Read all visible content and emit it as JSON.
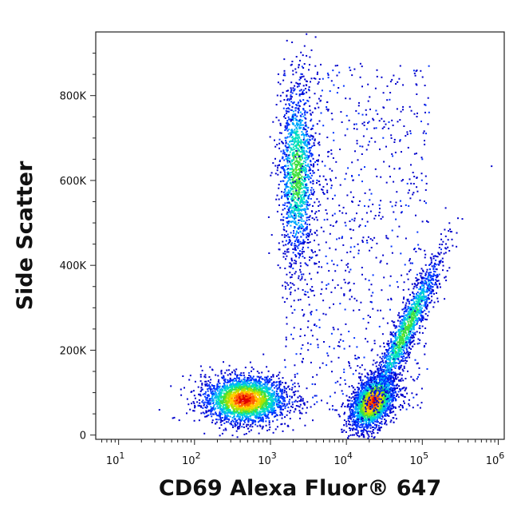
{
  "chart_data": {
    "type": "scatter",
    "subtype": "flow-cytometry density dot plot",
    "xlabel": "CD69 Alexa Fluor® 647",
    "ylabel": "Side Scatter",
    "x_scale": "log",
    "y_scale": "linear",
    "xlim": [
      5,
      1200000
    ],
    "ylim": [
      -10000,
      950000
    ],
    "x_ticks": [
      {
        "value": 10,
        "base": "10",
        "exp": "1"
      },
      {
        "value": 100,
        "base": "10",
        "exp": "2"
      },
      {
        "value": 1000,
        "base": "10",
        "exp": "3"
      },
      {
        "value": 10000,
        "base": "10",
        "exp": "4"
      },
      {
        "value": 100000,
        "base": "10",
        "exp": "5"
      },
      {
        "value": 1000000,
        "base": "10",
        "exp": "6"
      }
    ],
    "y_ticks": [
      {
        "value": 0,
        "label": "0"
      },
      {
        "value": 200000,
        "label": "200K"
      },
      {
        "value": 400000,
        "label": "400K"
      },
      {
        "value": 600000,
        "label": "600K"
      },
      {
        "value": 800000,
        "label": "800K"
      }
    ],
    "grid": false,
    "legend": "none",
    "density_colors": [
      "#0000cc",
      "#0033ff",
      "#00aaff",
      "#00e0c0",
      "#40e040",
      "#b0e000",
      "#ffd000",
      "#ff6000",
      "#e00000"
    ],
    "populations": [
      {
        "x_center": 450,
        "y_center": 85000,
        "x_spread_log10": 0.28,
        "y_spread": 28000,
        "density": "high"
      },
      {
        "x_center": 22000,
        "y_center": 80000,
        "x_spread_log10": 0.15,
        "y_spread": 30000,
        "density": "high"
      },
      {
        "x_center": 2200,
        "y_center": 620000,
        "x_spread_log10": 0.12,
        "y_spread": 110000,
        "density": "medium"
      },
      {
        "x_center": 60000,
        "y_center": 250000,
        "x_spread_log10": 0.12,
        "y_spread": 90000,
        "density": "medium"
      }
    ]
  }
}
